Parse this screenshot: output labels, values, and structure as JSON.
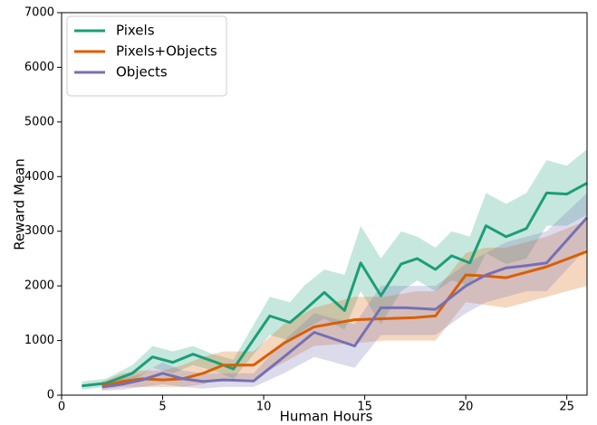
{
  "chart_data": {
    "type": "line",
    "xlabel": "Human Hours",
    "ylabel": "Reward Mean",
    "xlim": [
      0,
      26
    ],
    "ylim": [
      0,
      7000
    ],
    "xticks": [
      0,
      5,
      10,
      15,
      20,
      25
    ],
    "yticks": [
      0,
      1000,
      2000,
      3000,
      4000,
      5000,
      6000,
      7000
    ],
    "grid": false,
    "legend": "upper left",
    "series": [
      {
        "name": "Pixels",
        "color": "#1b9e77",
        "x": [
          1,
          2.2,
          3.5,
          4.5,
          5.5,
          6.5,
          7.5,
          8.5,
          10.3,
          11.3,
          12,
          13,
          14,
          14.8,
          15.8,
          16.8,
          17.6,
          18.5,
          19.3,
          20.2,
          21,
          22,
          23,
          24,
          25,
          26
        ],
        "values": [
          170,
          220,
          400,
          700,
          600,
          750,
          620,
          480,
          1450,
          1330,
          1550,
          1880,
          1550,
          2420,
          1820,
          2400,
          2500,
          2300,
          2550,
          2420,
          3100,
          2900,
          3050,
          3700,
          3680,
          3880
        ],
        "upper": [
          250,
          300,
          550,
          900,
          800,
          900,
          750,
          650,
          1800,
          1700,
          2000,
          2300,
          2200,
          3100,
          2500,
          3000,
          2900,
          2700,
          3000,
          2900,
          3700,
          3500,
          3700,
          4300,
          4200,
          4500
        ],
        "lower": [
          100,
          150,
          250,
          500,
          400,
          550,
          450,
          300,
          1100,
          1000,
          1200,
          1400,
          1200,
          1900,
          1300,
          1900,
          2100,
          1900,
          2100,
          2000,
          2600,
          2400,
          2500,
          3100,
          3100,
          3300
        ]
      },
      {
        "name": "Pixels+Objects",
        "color": "#d95f02",
        "x": [
          2,
          3,
          4,
          5,
          6,
          7,
          8,
          9.5,
          11,
          12.5,
          14.5,
          16,
          17.5,
          18.5,
          20,
          21,
          22,
          23,
          24,
          26
        ],
        "values": [
          170,
          250,
          300,
          280,
          300,
          400,
          550,
          550,
          950,
          1250,
          1380,
          1400,
          1420,
          1450,
          2200,
          2180,
          2150,
          2250,
          2350,
          2630
        ],
        "upper": [
          250,
          400,
          450,
          450,
          550,
          700,
          800,
          800,
          1300,
          1600,
          1800,
          1800,
          1900,
          1900,
          2600,
          2700,
          2700,
          2800,
          2900,
          3200
        ],
        "lower": [
          100,
          150,
          150,
          150,
          150,
          200,
          300,
          300,
          600,
          900,
          950,
          1000,
          1000,
          1000,
          1700,
          1650,
          1600,
          1700,
          1800,
          2000
        ]
      },
      {
        "name": "Objects",
        "color": "#7570b3",
        "x": [
          2,
          3,
          4,
          5,
          6,
          7,
          8,
          9.5,
          11,
          12.5,
          14.5,
          15.8,
          17,
          18.5,
          20,
          21,
          22,
          23,
          24,
          26
        ],
        "values": [
          150,
          200,
          280,
          400,
          300,
          250,
          280,
          260,
          700,
          1150,
          900,
          1600,
          1600,
          1570,
          2000,
          2200,
          2330,
          2370,
          2420,
          3250
        ],
        "upper": [
          230,
          300,
          400,
          600,
          450,
          400,
          400,
          400,
          1000,
          1500,
          1300,
          2000,
          2000,
          2000,
          2400,
          2600,
          2800,
          2900,
          3000,
          3700
        ],
        "lower": [
          80,
          100,
          150,
          200,
          150,
          120,
          150,
          150,
          400,
          700,
          500,
          1100,
          1100,
          1100,
          1500,
          1700,
          1800,
          1900,
          1900,
          2700
        ]
      }
    ]
  }
}
